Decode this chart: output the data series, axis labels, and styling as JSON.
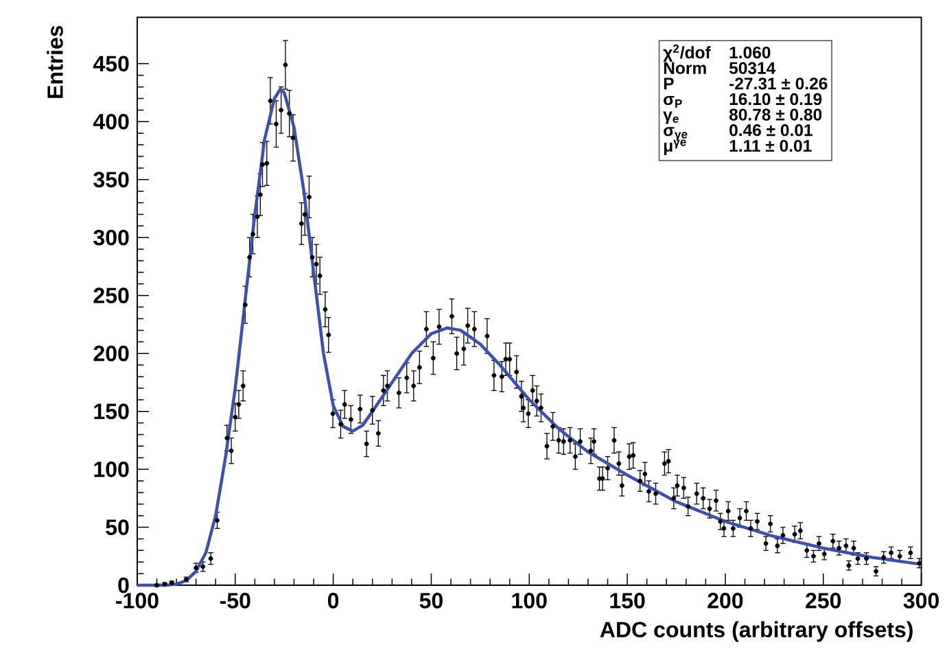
{
  "chart_data": {
    "type": "scatter",
    "xlabel": "ADC counts (arbitrary offsets)",
    "ylabel": "Entries",
    "xlim": [
      -100,
      300
    ],
    "ylim": [
      0,
      490
    ],
    "xticks": [
      -100,
      -50,
      0,
      50,
      100,
      150,
      200,
      250,
      300
    ],
    "yticks": [
      0,
      50,
      100,
      150,
      200,
      250,
      300,
      350,
      400,
      450
    ],
    "annotations": [
      "χ$^{2}$/dof",
      "1.060",
      "Norm",
      "50314",
      "P",
      "-27.31 ± 0.26",
      "σ$_{P}$",
      "16.10 ± 0.19",
      "γ$_{e}$",
      "80.78 ± 0.80",
      "σ$_{γe}$",
      "0.46 ± 0.01",
      "μ$^{γe}$",
      "1.11 ± 0.01"
    ],
    "series": [
      {
        "color": "#000000",
        "marker": "circle",
        "x": [
          -90,
          -86,
          -82.4,
          -75,
          -70,
          -66.5,
          -62.5,
          -59.2,
          -54.2,
          -52,
          -50,
          -48.2,
          -46,
          -44.9,
          -42.7,
          -41,
          -38.7,
          -37.2,
          -36.1,
          -33.9,
          -32.1,
          -29.1,
          -26.6,
          -24.4,
          -22.4,
          -20.5,
          -16.2,
          -14.5,
          -12.3,
          -10.7,
          -8.6,
          -6.8,
          -4.1,
          -2.4,
          -0.2,
          3.8,
          5.8,
          9,
          13.7,
          17,
          20,
          23,
          25.6,
          27.6,
          33.5,
          37.5,
          41,
          44,
          47.5,
          51,
          54,
          60.5,
          63,
          66.6,
          68.6,
          72,
          78.5,
          82,
          86,
          88,
          90,
          93.5,
          96,
          97,
          99.5,
          101.7,
          103.8,
          106,
          109,
          112,
          115,
          117.5,
          120.8,
          123.5,
          126,
          131.4,
          133,
          135.8,
          137.4,
          140,
          143.3,
          145.7,
          147.3,
          151,
          153,
          156.5,
          159,
          161,
          164.5,
          169,
          171,
          173.7,
          175.5,
          178.8,
          181,
          185.4,
          188.7,
          192,
          195.3,
          197.5,
          199.3,
          201.5,
          204,
          207.4,
          210.7,
          213,
          216.3,
          220.7,
          223,
          226.6,
          229.4,
          235.4,
          238.3,
          241.6,
          245,
          247.8,
          250.5,
          254.9,
          258,
          261.6,
          263,
          265.5,
          267.6,
          272,
          276.9,
          280.8,
          284.6,
          289,
          294.5,
          299
        ],
        "values": [
          0,
          1,
          2,
          5,
          15,
          16,
          23,
          56,
          127,
          116,
          145,
          156,
          172,
          242,
          283,
          303,
          318,
          337,
          363,
          364,
          418,
          398,
          410,
          449,
          407,
          386,
          312,
          320,
          335,
          283,
          277,
          267,
          238,
          216,
          148,
          139,
          156,
          143,
          152,
          122,
          151,
          131,
          168,
          172,
          166,
          179,
          172,
          188,
          221,
          196,
          223,
          232,
          200,
          204,
          224,
          221,
          215,
          181,
          180,
          195,
          195,
          184,
          163,
          153,
          148,
          168,
          159,
          153,
          120,
          137,
          125,
          124,
          125,
          111,
          124,
          116,
          124,
          92,
          92,
          101,
          125,
          105,
          86,
          111,
          112,
          90,
          96,
          81,
          79,
          105,
          107,
          75,
          86,
          84,
          68,
          79,
          75,
          66,
          73,
          55,
          49,
          64,
          49,
          58,
          64,
          49,
          55,
          36,
          53,
          34,
          43,
          44,
          47,
          30,
          25,
          36,
          27,
          38,
          32,
          34,
          17,
          32,
          23,
          23,
          12,
          24,
          28,
          25,
          28,
          19
        ],
        "errors": [
          1,
          1,
          1.5,
          2,
          4,
          4,
          5,
          7,
          11,
          11,
          12,
          12,
          13,
          16,
          17,
          17,
          18,
          18,
          19,
          19,
          20,
          20,
          20,
          21,
          20,
          20,
          18,
          18,
          18,
          17,
          17,
          16,
          15,
          15,
          12,
          12,
          12,
          12,
          12,
          11,
          12,
          11,
          13,
          13,
          13,
          13,
          13,
          14,
          15,
          14,
          15,
          15,
          14,
          14,
          15,
          15,
          15,
          13,
          13,
          14,
          14,
          14,
          13,
          12,
          12,
          13,
          13,
          12,
          11,
          12,
          11,
          11,
          11,
          11,
          11,
          11,
          11,
          10,
          10,
          10,
          11,
          10,
          9,
          11,
          11,
          9,
          10,
          9,
          9,
          10,
          10,
          9,
          9,
          9,
          8,
          9,
          9,
          8,
          9,
          7,
          7,
          8,
          7,
          8,
          8,
          7,
          7,
          6,
          7,
          6,
          7,
          7,
          7,
          6,
          5,
          6,
          5,
          6,
          6,
          6,
          4,
          6,
          5,
          5,
          4,
          5,
          5,
          5,
          5,
          4
        ]
      },
      {
        "type": "line",
        "color": "#3c50b0",
        "marker": "none",
        "x": [
          -100,
          -85,
          -80,
          -75,
          -70,
          -65,
          -60,
          -55,
          -50,
          -45,
          -40,
          -35,
          -30,
          -27,
          -25,
          -20,
          -15,
          -10,
          -5,
          0,
          5,
          10,
          15,
          20,
          30,
          40,
          50,
          58,
          65,
          75,
          85,
          100,
          115,
          130,
          150,
          175,
          200,
          225,
          250,
          275,
          300
        ],
        "values": [
          0,
          0,
          1,
          4,
          12,
          28,
          60,
          110,
          170,
          245,
          320,
          385,
          420,
          428,
          425,
          395,
          340,
          270,
          200,
          155,
          137,
          133,
          138,
          150,
          175,
          200,
          217,
          222,
          220,
          208,
          190,
          160,
          135,
          115,
          95,
          72,
          55,
          42,
          32,
          24,
          18
        ]
      }
    ]
  }
}
